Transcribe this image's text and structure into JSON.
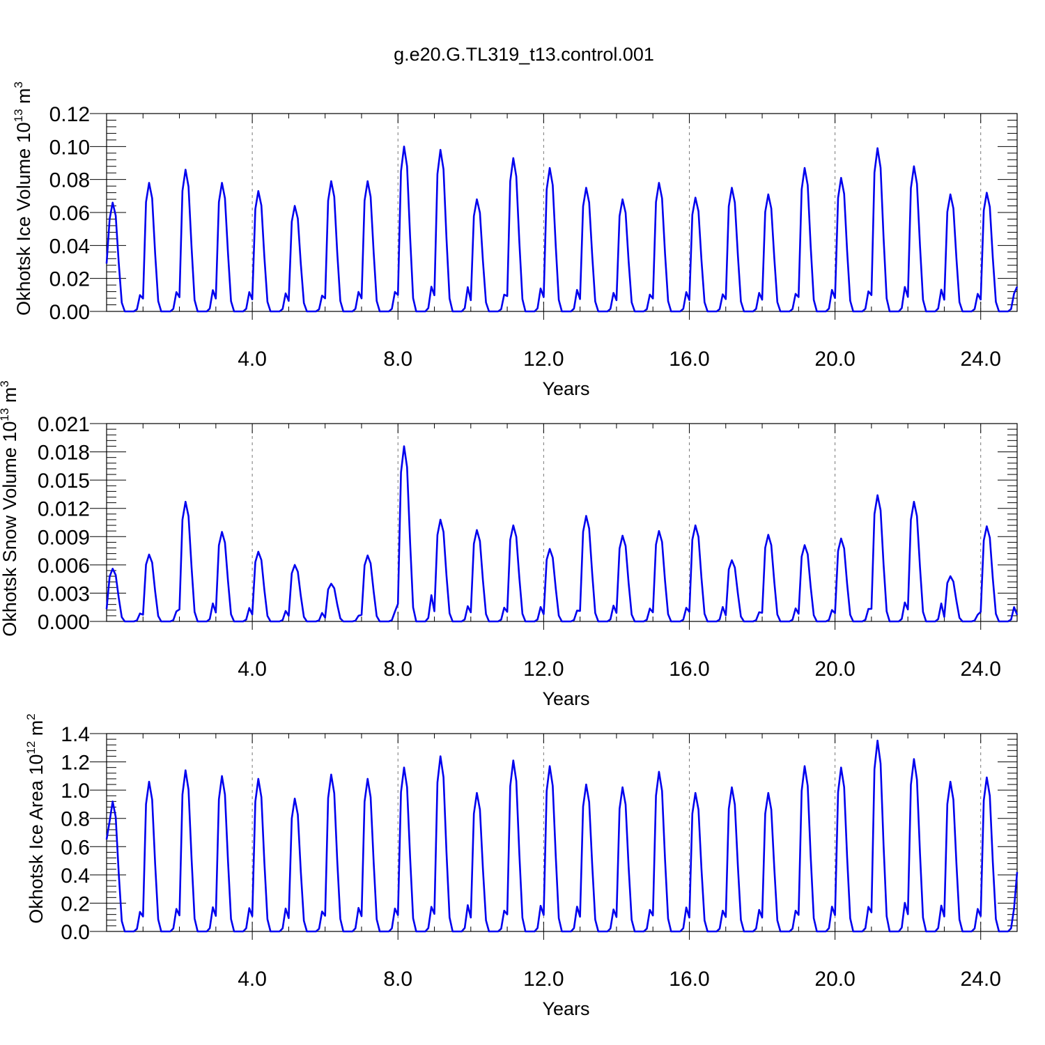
{
  "title": "g.e20.G.TL319_t13.control.001",
  "chart_data": [
    {
      "type": "line",
      "ylabel": "Okhotsk Ice Volume 10",
      "ylabel_exponent": "13",
      "ylabel_unit": "m",
      "ylabel_unit_exponent": "3",
      "xlabel": "Years",
      "xlim": [
        0,
        25
      ],
      "ylim": [
        0,
        0.12
      ],
      "xticks": [
        4,
        8,
        12,
        16,
        20,
        24
      ],
      "xtick_labels": [
        "4.0",
        "8.0",
        "12.0",
        "16.0",
        "20.0",
        "24.0"
      ],
      "yticks": [
        0,
        0.02,
        0.04,
        0.06,
        0.08,
        0.1,
        0.12
      ],
      "ytick_labels": [
        "0.00",
        "0.02",
        "0.04",
        "0.06",
        "0.08",
        "0.10",
        "0.12"
      ],
      "grid": "dashed vertical at major x ticks",
      "series_color": "#0000ee",
      "peaks": [
        0.066,
        0.078,
        0.086,
        0.078,
        0.073,
        0.064,
        0.079,
        0.079,
        0.1,
        0.098,
        0.068,
        0.093,
        0.087,
        0.075,
        0.068,
        0.078,
        0.069,
        0.075,
        0.071,
        0.087,
        0.081,
        0.099,
        0.088,
        0.071,
        0.072
      ],
      "start_value": 0.029,
      "end_value": 0.015
    },
    {
      "type": "line",
      "ylabel": "Okhotsk Snow Volume 10",
      "ylabel_exponent": "13",
      "ylabel_unit": "m",
      "ylabel_unit_exponent": "3",
      "xlabel": "Years",
      "xlim": [
        0,
        25
      ],
      "ylim": [
        0,
        0.021
      ],
      "xticks": [
        4,
        8,
        12,
        16,
        20,
        24
      ],
      "xtick_labels": [
        "4.0",
        "8.0",
        "12.0",
        "16.0",
        "20.0",
        "24.0"
      ],
      "yticks": [
        0,
        0.003,
        0.006,
        0.009,
        0.012,
        0.015,
        0.018,
        0.021
      ],
      "ytick_labels": [
        "0.000",
        "0.003",
        "0.006",
        "0.009",
        "0.012",
        "0.015",
        "0.018",
        "0.021"
      ],
      "grid": "dashed vertical at major x ticks",
      "series_color": "#0000ee",
      "peaks": [
        0.0056,
        0.0071,
        0.0127,
        0.0095,
        0.0074,
        0.006,
        0.004,
        0.007,
        0.0186,
        0.0108,
        0.0097,
        0.0102,
        0.0077,
        0.0112,
        0.0091,
        0.0096,
        0.0102,
        0.0065,
        0.0092,
        0.0081,
        0.0088,
        0.0134,
        0.0127,
        0.0048,
        0.0101
      ],
      "start_value": 0.0013,
      "end_value": 0.0007
    },
    {
      "type": "line",
      "ylabel": "Okhotsk Ice Area 10",
      "ylabel_exponent": "12",
      "ylabel_unit": "m",
      "ylabel_unit_exponent": "2",
      "xlabel": "Years",
      "xlim": [
        0,
        25
      ],
      "ylim": [
        0,
        1.4
      ],
      "xticks": [
        4,
        8,
        12,
        16,
        20,
        24
      ],
      "xtick_labels": [
        "4.0",
        "8.0",
        "12.0",
        "16.0",
        "20.0",
        "24.0"
      ],
      "yticks": [
        0,
        0.2,
        0.4,
        0.6,
        0.8,
        1.0,
        1.2,
        1.4
      ],
      "ytick_labels": [
        "0.0",
        "0.2",
        "0.4",
        "0.6",
        "0.8",
        "1.0",
        "1.2",
        "1.4"
      ],
      "grid": "dashed vertical at major x ticks",
      "series_color": "#0000ee",
      "peaks": [
        0.92,
        1.06,
        1.14,
        1.1,
        1.08,
        0.94,
        1.11,
        1.08,
        1.16,
        1.24,
        0.98,
        1.21,
        1.17,
        1.04,
        1.02,
        1.13,
        0.98,
        1.02,
        0.98,
        1.17,
        1.16,
        1.35,
        1.22,
        1.06,
        1.09
      ],
      "start_value": 0.65,
      "end_value": 0.42
    }
  ]
}
